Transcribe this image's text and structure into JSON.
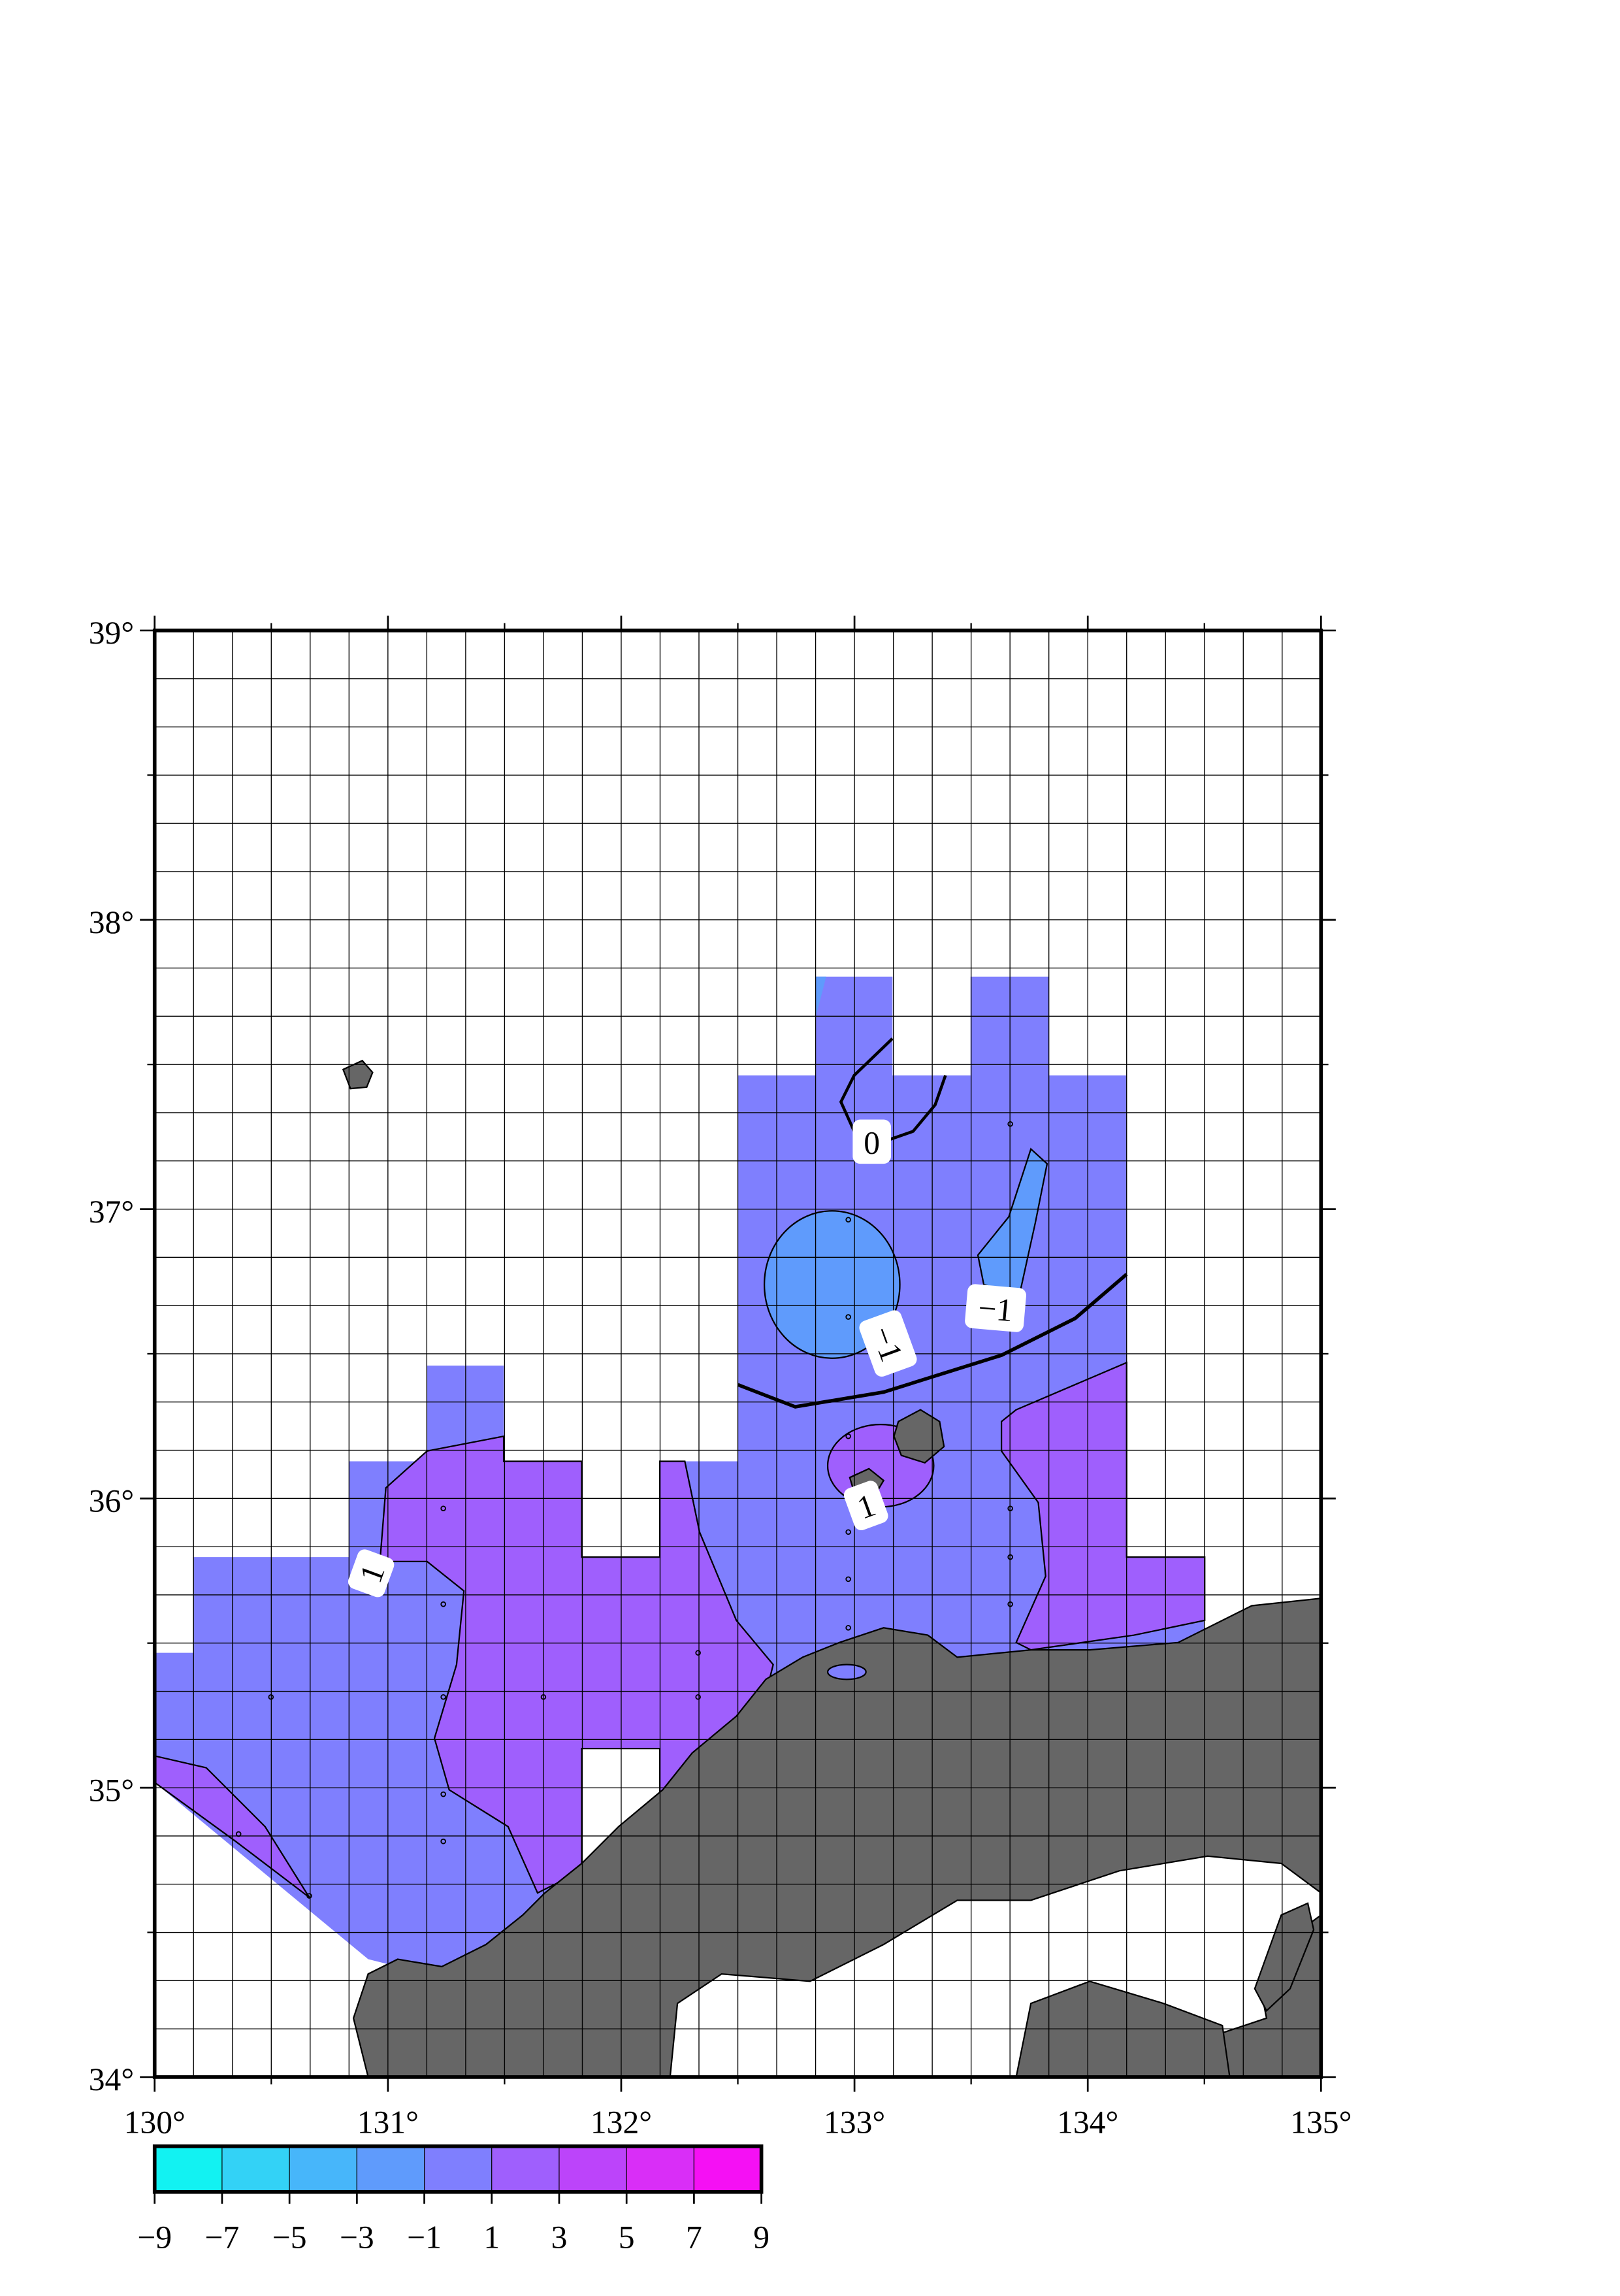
{
  "map": {
    "xlim": [
      130,
      135
    ],
    "ylim": [
      34,
      39
    ],
    "xticks": [
      {
        "value": 130,
        "label": "130°"
      },
      {
        "value": 131,
        "label": "131°"
      },
      {
        "value": 132,
        "label": "132°"
      },
      {
        "value": 133,
        "label": "133°"
      },
      {
        "value": 134,
        "label": "134°"
      },
      {
        "value": 135,
        "label": "135°"
      }
    ],
    "yticks": [
      {
        "value": 34,
        "label": "34°"
      },
      {
        "value": 35,
        "label": "35°"
      },
      {
        "value": 36,
        "label": "36°"
      },
      {
        "value": 37,
        "label": "37°"
      },
      {
        "value": 38,
        "label": "38°"
      },
      {
        "value": 39,
        "label": "39°"
      }
    ],
    "grid": true,
    "contour_labels": [
      "0",
      "−1",
      "−1",
      "1",
      "1"
    ],
    "colorbar": {
      "ticks": [
        {
          "value": -9,
          "label": "−9"
        },
        {
          "value": -7,
          "label": "−7"
        },
        {
          "value": -5,
          "label": "−5"
        },
        {
          "value": -3,
          "label": "−3"
        },
        {
          "value": -1,
          "label": "−1"
        },
        1,
        3,
        5,
        7,
        9
      ],
      "colors": [
        "#12f2f2",
        "#33d2f6",
        "#47b6fa",
        "#5f9bfc",
        "#7f7ffe",
        "#9f5ffd",
        "#bc44fa",
        "#d92ef7",
        "#f510f4"
      ]
    }
  }
}
